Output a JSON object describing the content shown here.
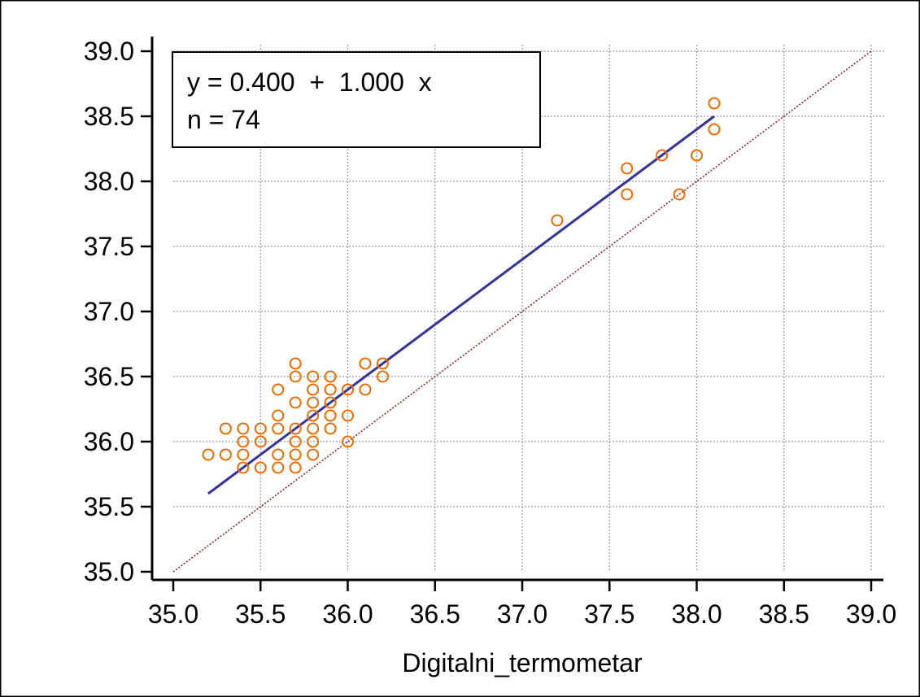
{
  "chart_data": {
    "type": "scatter",
    "title": "",
    "xlabel": "Digitalni_termometar",
    "ylabel": "",
    "xlim": [
      35.0,
      39.0
    ],
    "ylim": [
      35.0,
      39.0
    ],
    "xticks": [
      "35.0",
      "35.5",
      "36.0",
      "36.5",
      "37.0",
      "37.5",
      "38.0",
      "38.5",
      "39.0"
    ],
    "yticks": [
      "35.0",
      "35.5",
      "36.0",
      "36.5",
      "37.0",
      "37.5",
      "38.0",
      "38.5",
      "39.0"
    ],
    "grid": true,
    "equation_box": {
      "line1": "y = 0.400  +  1.000  x",
      "line2": "n = 74"
    },
    "regression": {
      "intercept": 0.4,
      "slope": 1.0,
      "x_range": [
        35.2,
        38.1
      ]
    },
    "identity_line": {
      "x_range": [
        35.0,
        39.0
      ]
    },
    "points": [
      {
        "x": 35.2,
        "y": 35.9
      },
      {
        "x": 35.3,
        "y": 35.9
      },
      {
        "x": 35.3,
        "y": 36.1
      },
      {
        "x": 35.4,
        "y": 35.8
      },
      {
        "x": 35.4,
        "y": 35.9
      },
      {
        "x": 35.4,
        "y": 36.0
      },
      {
        "x": 35.4,
        "y": 36.1
      },
      {
        "x": 35.5,
        "y": 35.8
      },
      {
        "x": 35.5,
        "y": 36.0
      },
      {
        "x": 35.5,
        "y": 36.1
      },
      {
        "x": 35.6,
        "y": 35.8
      },
      {
        "x": 35.6,
        "y": 35.9
      },
      {
        "x": 35.6,
        "y": 36.1
      },
      {
        "x": 35.6,
        "y": 36.2
      },
      {
        "x": 35.6,
        "y": 36.4
      },
      {
        "x": 35.7,
        "y": 35.8
      },
      {
        "x": 35.7,
        "y": 35.9
      },
      {
        "x": 35.7,
        "y": 36.0
      },
      {
        "x": 35.7,
        "y": 36.1
      },
      {
        "x": 35.7,
        "y": 36.3
      },
      {
        "x": 35.7,
        "y": 36.5
      },
      {
        "x": 35.7,
        "y": 36.6
      },
      {
        "x": 35.8,
        "y": 35.9
      },
      {
        "x": 35.8,
        "y": 36.0
      },
      {
        "x": 35.8,
        "y": 36.1
      },
      {
        "x": 35.8,
        "y": 36.2
      },
      {
        "x": 35.8,
        "y": 36.3
      },
      {
        "x": 35.8,
        "y": 36.4
      },
      {
        "x": 35.8,
        "y": 36.5
      },
      {
        "x": 35.9,
        "y": 36.1
      },
      {
        "x": 35.9,
        "y": 36.2
      },
      {
        "x": 35.9,
        "y": 36.3
      },
      {
        "x": 35.9,
        "y": 36.4
      },
      {
        "x": 35.9,
        "y": 36.5
      },
      {
        "x": 36.0,
        "y": 36.0
      },
      {
        "x": 36.0,
        "y": 36.2
      },
      {
        "x": 36.0,
        "y": 36.4
      },
      {
        "x": 36.1,
        "y": 36.4
      },
      {
        "x": 36.1,
        "y": 36.6
      },
      {
        "x": 36.2,
        "y": 36.5
      },
      {
        "x": 36.2,
        "y": 36.6
      },
      {
        "x": 37.2,
        "y": 37.7
      },
      {
        "x": 37.6,
        "y": 37.9
      },
      {
        "x": 37.6,
        "y": 38.1
      },
      {
        "x": 37.8,
        "y": 38.2
      },
      {
        "x": 37.9,
        "y": 37.9
      },
      {
        "x": 38.0,
        "y": 38.2
      },
      {
        "x": 38.1,
        "y": 38.4
      },
      {
        "x": 38.1,
        "y": 38.6
      }
    ]
  },
  "colors": {
    "frame": "#000000",
    "grid": "#9a9a9a",
    "regression_line": "#333399",
    "identity_line": "#8b1a1a",
    "marker": "#ee6a00"
  }
}
